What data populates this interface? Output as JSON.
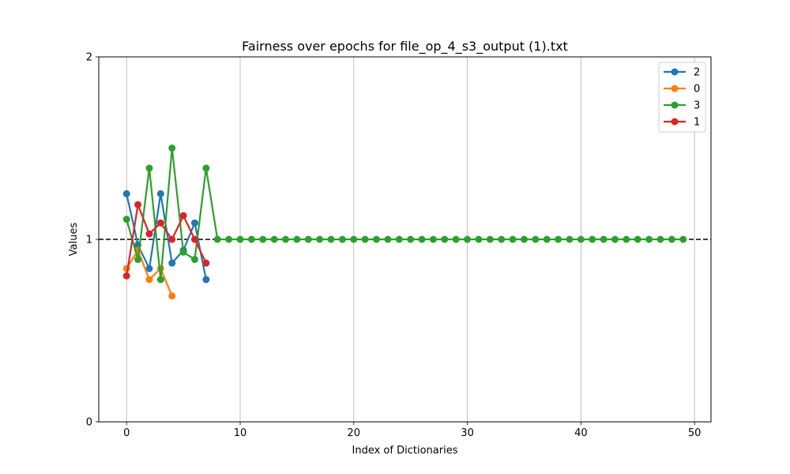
{
  "chart_data": {
    "type": "line",
    "title": "Fairness over epochs for file_op_4_s3_output (1).txt",
    "xlabel": "Index of Dictionaries",
    "ylabel": "Values",
    "xlim": [
      -2.45,
      51.45
    ],
    "ylim": [
      0,
      2
    ],
    "x_ticks": [
      0,
      10,
      20,
      30,
      40,
      50
    ],
    "y_ticks": [
      0,
      1,
      2
    ],
    "grid": "vertical",
    "legend_position": "top-right",
    "reference_line": {
      "y": 1,
      "style": "dashed",
      "color": "#000000"
    },
    "series": [
      {
        "name": "2",
        "color": "#1f77b4",
        "x": [
          0,
          1,
          2,
          3,
          4,
          5,
          6,
          7
        ],
        "y": [
          1.25,
          0.97,
          0.84,
          1.25,
          0.87,
          0.94,
          1.09,
          0.78
        ]
      },
      {
        "name": "0",
        "color": "#ff7f0e",
        "x": [
          0,
          1,
          2,
          3,
          4
        ],
        "y": [
          0.84,
          0.94,
          0.78,
          0.84,
          0.69
        ]
      },
      {
        "name": "3",
        "color": "#2ca02c",
        "x": [
          0,
          1,
          2,
          3,
          4,
          5,
          6,
          7,
          8,
          9,
          10,
          11,
          12,
          13,
          14,
          15,
          16,
          17,
          18,
          19,
          20,
          21,
          22,
          23,
          24,
          25,
          26,
          27,
          28,
          29,
          30,
          31,
          32,
          33,
          34,
          35,
          36,
          37,
          38,
          39,
          40,
          41,
          42,
          43,
          44,
          45,
          46,
          47,
          48,
          49
        ],
        "y": [
          1.11,
          0.89,
          1.39,
          0.78,
          1.5,
          0.93,
          0.89,
          1.39,
          1,
          1,
          1,
          1,
          1,
          1,
          1,
          1,
          1,
          1,
          1,
          1,
          1,
          1,
          1,
          1,
          1,
          1,
          1,
          1,
          1,
          1,
          1,
          1,
          1,
          1,
          1,
          1,
          1,
          1,
          1,
          1,
          1,
          1,
          1,
          1,
          1,
          1,
          1,
          1,
          1,
          1
        ]
      },
      {
        "name": "1",
        "color": "#d62728",
        "x": [
          0,
          1,
          2,
          3,
          4,
          5,
          6,
          7
        ],
        "y": [
          0.8,
          1.19,
          1.03,
          1.09,
          1.0,
          1.13,
          1.0,
          0.87
        ]
      }
    ]
  }
}
